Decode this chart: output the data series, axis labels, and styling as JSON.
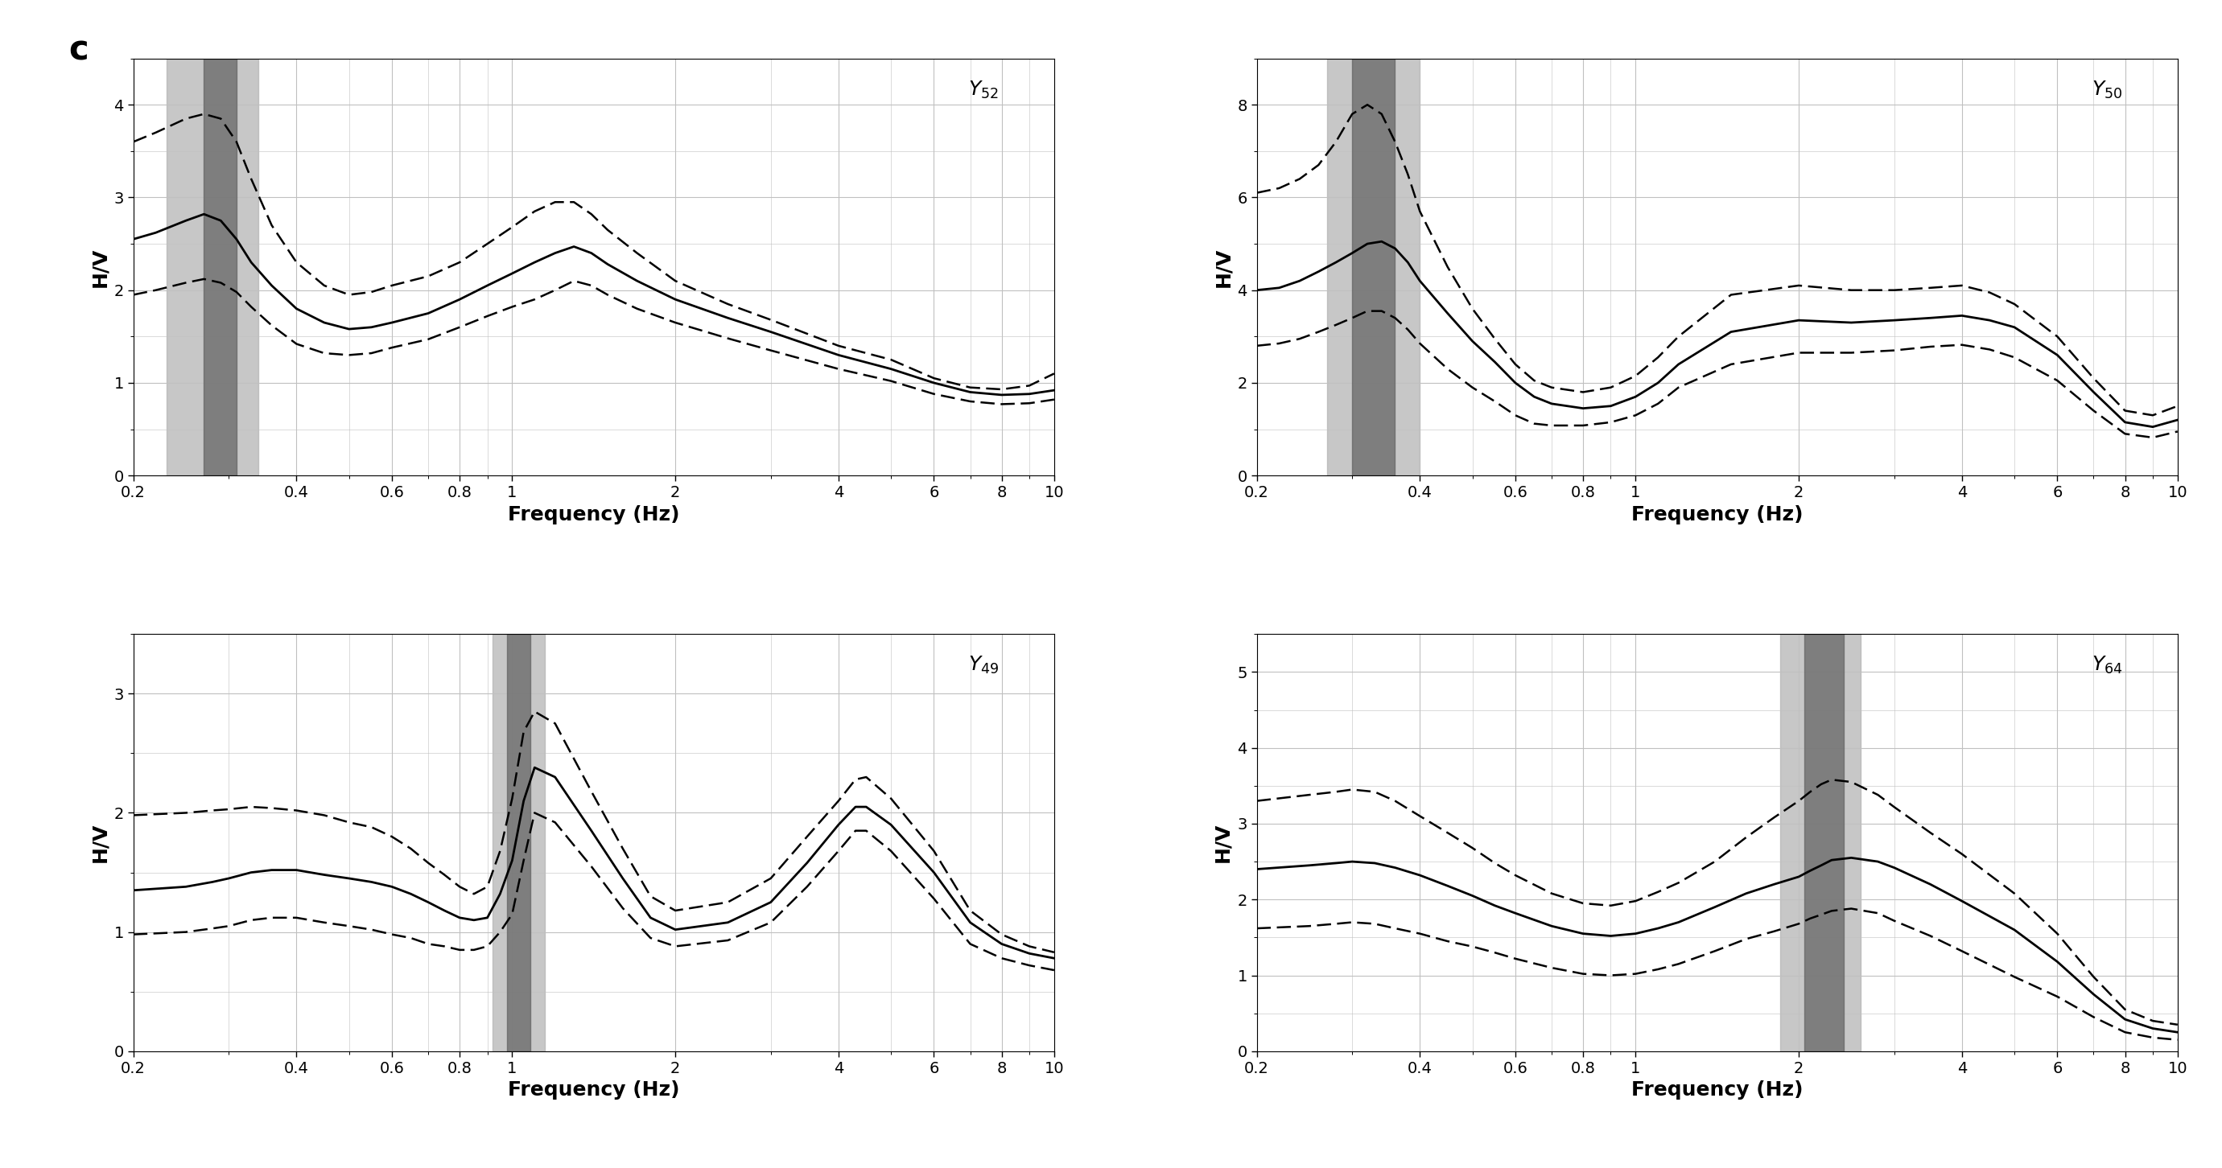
{
  "panels": [
    {
      "label": "Y_{52}",
      "ylabel": "H/V",
      "xlabel": "Frequency (Hz)",
      "ylim": [
        0,
        4.5
      ],
      "yticks": [
        0,
        1,
        2,
        3,
        4
      ],
      "xlim": [
        0.2,
        10
      ],
      "xticks": [
        0.2,
        0.4,
        0.6,
        0.8,
        1,
        2,
        4,
        6,
        8,
        10
      ],
      "xticklabels": [
        "0.2",
        "0.4",
        "0.6",
        "0.8",
        "1",
        "2",
        "4",
        "6",
        "8",
        "10"
      ],
      "band_light": [
        0.23,
        0.34
      ],
      "band_dark": [
        0.27,
        0.31
      ],
      "mean_x": [
        0.2,
        0.22,
        0.25,
        0.27,
        0.29,
        0.31,
        0.33,
        0.36,
        0.4,
        0.45,
        0.5,
        0.55,
        0.6,
        0.7,
        0.8,
        0.9,
        1.0,
        1.1,
        1.2,
        1.3,
        1.4,
        1.5,
        1.7,
        2.0,
        2.5,
        3.0,
        4.0,
        5.0,
        6.0,
        7.0,
        8.0,
        9.0,
        10.0
      ],
      "mean_y": [
        2.55,
        2.62,
        2.75,
        2.82,
        2.75,
        2.55,
        2.3,
        2.05,
        1.8,
        1.65,
        1.58,
        1.6,
        1.65,
        1.75,
        1.9,
        2.05,
        2.18,
        2.3,
        2.4,
        2.47,
        2.4,
        2.28,
        2.1,
        1.9,
        1.7,
        1.55,
        1.3,
        1.15,
        1.0,
        0.9,
        0.87,
        0.88,
        0.92
      ],
      "upper_x": [
        0.2,
        0.22,
        0.25,
        0.27,
        0.29,
        0.31,
        0.33,
        0.36,
        0.4,
        0.45,
        0.5,
        0.55,
        0.6,
        0.7,
        0.8,
        0.9,
        1.0,
        1.1,
        1.2,
        1.3,
        1.4,
        1.5,
        1.7,
        2.0,
        2.5,
        3.0,
        4.0,
        5.0,
        6.0,
        7.0,
        8.0,
        9.0,
        10.0
      ],
      "upper_y": [
        3.6,
        3.7,
        3.85,
        3.9,
        3.85,
        3.6,
        3.2,
        2.7,
        2.3,
        2.05,
        1.95,
        1.98,
        2.05,
        2.15,
        2.3,
        2.5,
        2.68,
        2.85,
        2.95,
        2.95,
        2.82,
        2.65,
        2.4,
        2.1,
        1.85,
        1.68,
        1.4,
        1.25,
        1.05,
        0.95,
        0.93,
        0.97,
        1.1
      ],
      "lower_x": [
        0.2,
        0.22,
        0.25,
        0.27,
        0.29,
        0.31,
        0.33,
        0.36,
        0.4,
        0.45,
        0.5,
        0.55,
        0.6,
        0.7,
        0.8,
        0.9,
        1.0,
        1.1,
        1.2,
        1.3,
        1.4,
        1.5,
        1.7,
        2.0,
        2.5,
        3.0,
        4.0,
        5.0,
        6.0,
        7.0,
        8.0,
        9.0,
        10.0
      ],
      "lower_y": [
        1.95,
        2.0,
        2.08,
        2.12,
        2.08,
        1.98,
        1.82,
        1.62,
        1.42,
        1.32,
        1.3,
        1.32,
        1.38,
        1.47,
        1.6,
        1.72,
        1.82,
        1.9,
        2.0,
        2.1,
        2.05,
        1.95,
        1.8,
        1.65,
        1.48,
        1.35,
        1.15,
        1.02,
        0.88,
        0.8,
        0.77,
        0.78,
        0.82
      ]
    },
    {
      "label": "Y_{50}",
      "ylabel": "H/V",
      "xlabel": "Frequency (Hz)",
      "ylim": [
        0,
        9
      ],
      "yticks": [
        0,
        2,
        4,
        6,
        8
      ],
      "xlim": [
        0.2,
        10
      ],
      "xticks": [
        0.2,
        0.4,
        0.6,
        0.8,
        1,
        2,
        4,
        6,
        8,
        10
      ],
      "xticklabels": [
        "0.2",
        "0.4",
        "0.6",
        "0.8",
        "1",
        "2",
        "4",
        "6",
        "8",
        "10"
      ],
      "band_light": [
        0.27,
        0.4
      ],
      "band_dark": [
        0.3,
        0.36
      ],
      "mean_x": [
        0.2,
        0.22,
        0.24,
        0.26,
        0.28,
        0.3,
        0.32,
        0.34,
        0.36,
        0.38,
        0.4,
        0.45,
        0.5,
        0.55,
        0.6,
        0.65,
        0.7,
        0.8,
        0.9,
        1.0,
        1.1,
        1.2,
        1.5,
        2.0,
        2.5,
        3.0,
        3.5,
        4.0,
        4.5,
        5.0,
        6.0,
        7.0,
        8.0,
        9.0,
        10.0
      ],
      "mean_y": [
        4.0,
        4.05,
        4.2,
        4.4,
        4.6,
        4.8,
        5.0,
        5.05,
        4.9,
        4.6,
        4.2,
        3.5,
        2.9,
        2.45,
        2.0,
        1.7,
        1.55,
        1.45,
        1.5,
        1.7,
        2.0,
        2.4,
        3.1,
        3.35,
        3.3,
        3.35,
        3.4,
        3.45,
        3.35,
        3.2,
        2.6,
        1.8,
        1.15,
        1.05,
        1.2
      ],
      "upper_x": [
        0.2,
        0.22,
        0.24,
        0.26,
        0.28,
        0.3,
        0.32,
        0.34,
        0.36,
        0.38,
        0.4,
        0.45,
        0.5,
        0.55,
        0.6,
        0.65,
        0.7,
        0.8,
        0.9,
        1.0,
        1.1,
        1.2,
        1.5,
        2.0,
        2.5,
        3.0,
        3.5,
        4.0,
        4.5,
        5.0,
        6.0,
        7.0,
        8.0,
        9.0,
        10.0
      ],
      "upper_y": [
        6.1,
        6.2,
        6.4,
        6.7,
        7.2,
        7.8,
        8.0,
        7.8,
        7.2,
        6.5,
        5.7,
        4.5,
        3.6,
        2.95,
        2.4,
        2.05,
        1.9,
        1.8,
        1.9,
        2.15,
        2.55,
        3.0,
        3.9,
        4.1,
        4.0,
        4.0,
        4.05,
        4.1,
        3.95,
        3.7,
        3.0,
        2.1,
        1.4,
        1.3,
        1.5
      ],
      "lower_x": [
        0.2,
        0.22,
        0.24,
        0.26,
        0.28,
        0.3,
        0.32,
        0.34,
        0.36,
        0.38,
        0.4,
        0.45,
        0.5,
        0.55,
        0.6,
        0.65,
        0.7,
        0.8,
        0.9,
        1.0,
        1.1,
        1.2,
        1.5,
        2.0,
        2.5,
        3.0,
        3.5,
        4.0,
        4.5,
        5.0,
        6.0,
        7.0,
        8.0,
        9.0,
        10.0
      ],
      "lower_y": [
        2.8,
        2.85,
        2.95,
        3.1,
        3.25,
        3.4,
        3.55,
        3.55,
        3.4,
        3.15,
        2.85,
        2.3,
        1.9,
        1.6,
        1.3,
        1.12,
        1.08,
        1.08,
        1.15,
        1.3,
        1.55,
        1.9,
        2.4,
        2.65,
        2.65,
        2.7,
        2.78,
        2.82,
        2.72,
        2.55,
        2.05,
        1.4,
        0.9,
        0.82,
        0.95
      ]
    },
    {
      "label": "Y_{49}",
      "ylabel": "H/V",
      "xlabel": "Frequency (Hz)",
      "ylim": [
        0,
        3.5
      ],
      "yticks": [
        0,
        1,
        2,
        3
      ],
      "xlim": [
        0.2,
        10
      ],
      "xticks": [
        0.2,
        0.4,
        0.6,
        0.8,
        1,
        2,
        4,
        6,
        8,
        10
      ],
      "xticklabels": [
        "0.2",
        "0.4",
        "0.6",
        "0.8",
        "1",
        "2",
        "4",
        "6",
        "8",
        "10"
      ],
      "band_light": [
        0.92,
        1.15
      ],
      "band_dark": [
        0.98,
        1.08
      ],
      "mean_x": [
        0.2,
        0.25,
        0.28,
        0.3,
        0.33,
        0.36,
        0.4,
        0.45,
        0.5,
        0.55,
        0.6,
        0.65,
        0.7,
        0.75,
        0.8,
        0.85,
        0.9,
        0.95,
        1.0,
        1.05,
        1.1,
        1.2,
        1.4,
        1.6,
        1.8,
        2.0,
        2.5,
        3.0,
        3.5,
        4.0,
        4.3,
        4.5,
        5.0,
        6.0,
        7.0,
        8.0,
        9.0,
        10.0
      ],
      "mean_y": [
        1.35,
        1.38,
        1.42,
        1.45,
        1.5,
        1.52,
        1.52,
        1.48,
        1.45,
        1.42,
        1.38,
        1.32,
        1.25,
        1.18,
        1.12,
        1.1,
        1.12,
        1.32,
        1.6,
        2.1,
        2.38,
        2.3,
        1.85,
        1.45,
        1.12,
        1.02,
        1.08,
        1.25,
        1.58,
        1.9,
        2.05,
        2.05,
        1.9,
        1.5,
        1.08,
        0.9,
        0.82,
        0.78
      ],
      "upper_x": [
        0.2,
        0.25,
        0.28,
        0.3,
        0.33,
        0.36,
        0.4,
        0.45,
        0.5,
        0.55,
        0.6,
        0.65,
        0.7,
        0.75,
        0.8,
        0.85,
        0.9,
        0.95,
        1.0,
        1.05,
        1.1,
        1.2,
        1.4,
        1.6,
        1.8,
        2.0,
        2.5,
        3.0,
        3.5,
        4.0,
        4.3,
        4.5,
        5.0,
        6.0,
        7.0,
        8.0,
        9.0,
        10.0
      ],
      "upper_y": [
        1.98,
        2.0,
        2.02,
        2.03,
        2.05,
        2.04,
        2.02,
        1.98,
        1.92,
        1.88,
        1.8,
        1.7,
        1.58,
        1.48,
        1.38,
        1.32,
        1.38,
        1.68,
        2.12,
        2.68,
        2.85,
        2.75,
        2.18,
        1.7,
        1.3,
        1.18,
        1.25,
        1.45,
        1.8,
        2.1,
        2.28,
        2.3,
        2.12,
        1.68,
        1.18,
        0.98,
        0.88,
        0.83
      ],
      "lower_x": [
        0.2,
        0.25,
        0.28,
        0.3,
        0.33,
        0.36,
        0.4,
        0.45,
        0.5,
        0.55,
        0.6,
        0.65,
        0.7,
        0.75,
        0.8,
        0.85,
        0.9,
        0.95,
        1.0,
        1.05,
        1.1,
        1.2,
        1.4,
        1.6,
        1.8,
        2.0,
        2.5,
        3.0,
        3.5,
        4.0,
        4.3,
        4.5,
        5.0,
        6.0,
        7.0,
        8.0,
        9.0,
        10.0
      ],
      "lower_y": [
        0.98,
        1.0,
        1.03,
        1.05,
        1.1,
        1.12,
        1.12,
        1.08,
        1.05,
        1.02,
        0.98,
        0.95,
        0.9,
        0.88,
        0.85,
        0.85,
        0.88,
        1.0,
        1.15,
        1.6,
        2.0,
        1.92,
        1.55,
        1.2,
        0.95,
        0.88,
        0.93,
        1.08,
        1.38,
        1.68,
        1.85,
        1.85,
        1.68,
        1.28,
        0.9,
        0.78,
        0.72,
        0.68
      ]
    },
    {
      "label": "Y_{64}",
      "ylabel": "H/V",
      "xlabel": "Frequency (Hz)",
      "ylim": [
        0,
        5.5
      ],
      "yticks": [
        0,
        1,
        2,
        3,
        4,
        5
      ],
      "xlim": [
        0.2,
        10
      ],
      "xticks": [
        0.2,
        0.4,
        0.6,
        0.8,
        1,
        2,
        4,
        6,
        8,
        10
      ],
      "xticklabels": [
        "0.2",
        "0.4",
        "0.6",
        "0.8",
        "1",
        "2",
        "4",
        "6",
        "8",
        "10"
      ],
      "band_light": [
        1.85,
        2.6
      ],
      "band_dark": [
        2.05,
        2.42
      ],
      "mean_x": [
        0.2,
        0.25,
        0.28,
        0.3,
        0.33,
        0.36,
        0.4,
        0.45,
        0.5,
        0.55,
        0.6,
        0.7,
        0.8,
        0.9,
        1.0,
        1.1,
        1.2,
        1.4,
        1.6,
        1.8,
        2.0,
        2.1,
        2.2,
        2.3,
        2.5,
        2.8,
        3.0,
        3.5,
        4.0,
        5.0,
        6.0,
        7.0,
        8.0,
        9.0,
        10.0
      ],
      "mean_y": [
        2.4,
        2.45,
        2.48,
        2.5,
        2.48,
        2.42,
        2.32,
        2.18,
        2.05,
        1.92,
        1.82,
        1.65,
        1.55,
        1.52,
        1.55,
        1.62,
        1.7,
        1.9,
        2.08,
        2.2,
        2.3,
        2.38,
        2.45,
        2.52,
        2.55,
        2.5,
        2.42,
        2.2,
        1.98,
        1.6,
        1.18,
        0.75,
        0.42,
        0.3,
        0.25
      ],
      "upper_x": [
        0.2,
        0.25,
        0.28,
        0.3,
        0.33,
        0.36,
        0.4,
        0.45,
        0.5,
        0.55,
        0.6,
        0.7,
        0.8,
        0.9,
        1.0,
        1.1,
        1.2,
        1.4,
        1.6,
        1.8,
        2.0,
        2.1,
        2.2,
        2.3,
        2.5,
        2.8,
        3.0,
        3.5,
        4.0,
        5.0,
        6.0,
        7.0,
        8.0,
        9.0,
        10.0
      ],
      "upper_y": [
        3.3,
        3.38,
        3.42,
        3.45,
        3.42,
        3.3,
        3.1,
        2.88,
        2.68,
        2.48,
        2.32,
        2.08,
        1.95,
        1.92,
        1.98,
        2.1,
        2.22,
        2.5,
        2.82,
        3.08,
        3.3,
        3.42,
        3.52,
        3.58,
        3.55,
        3.38,
        3.22,
        2.88,
        2.6,
        2.08,
        1.55,
        0.98,
        0.55,
        0.4,
        0.35
      ],
      "lower_x": [
        0.2,
        0.25,
        0.28,
        0.3,
        0.33,
        0.36,
        0.4,
        0.45,
        0.5,
        0.55,
        0.6,
        0.7,
        0.8,
        0.9,
        1.0,
        1.1,
        1.2,
        1.4,
        1.6,
        1.8,
        2.0,
        2.1,
        2.2,
        2.3,
        2.5,
        2.8,
        3.0,
        3.5,
        4.0,
        5.0,
        6.0,
        7.0,
        8.0,
        9.0,
        10.0
      ],
      "lower_y": [
        1.62,
        1.65,
        1.68,
        1.7,
        1.68,
        1.62,
        1.55,
        1.45,
        1.38,
        1.3,
        1.22,
        1.1,
        1.02,
        1.0,
        1.02,
        1.08,
        1.15,
        1.32,
        1.48,
        1.58,
        1.68,
        1.75,
        1.8,
        1.85,
        1.88,
        1.82,
        1.72,
        1.52,
        1.32,
        0.98,
        0.72,
        0.45,
        0.25,
        0.18,
        0.15
      ]
    }
  ],
  "panel_label": "c",
  "line_color": "#000000",
  "line_width": 2.0,
  "dash_linewidth": 1.8,
  "band_light_color": "#b0b0b0",
  "band_dark_color": "#606060",
  "band_alpha": 0.7,
  "grid_color": "#c0c0c0",
  "background_color": "#ffffff",
  "label_fontsize": 18,
  "tick_fontsize": 14,
  "title_fontsize": 16
}
